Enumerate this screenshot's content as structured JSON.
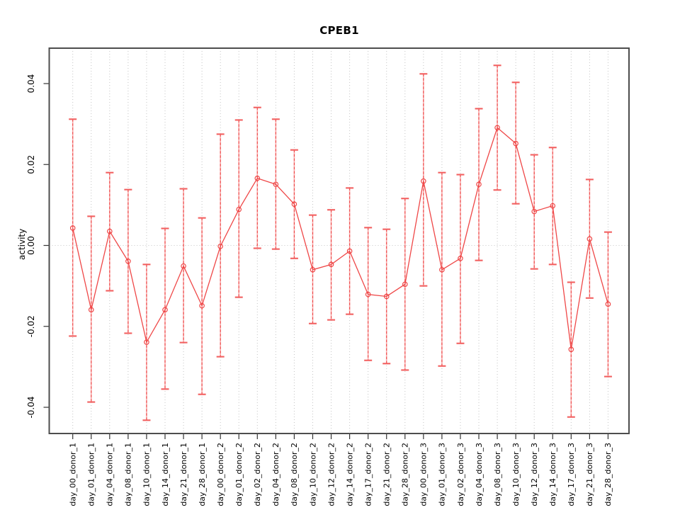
{
  "chart_data": {
    "type": "line",
    "title": "CPEB1",
    "xlabel": "",
    "ylabel": "activity",
    "ylim": [
      -0.047,
      0.048
    ],
    "yticks": [
      "-0.04",
      "-0.02",
      "0.00",
      "0.02",
      "0.04"
    ],
    "zero_line": true,
    "grid": "vertical dotted gridline at every category; dotted horizontal line at y=0",
    "legend_position": "none",
    "marker": "open-circle",
    "error_bars": "vertical dashed whiskers with flat caps",
    "colors": {
      "series": "#ef4747",
      "error_bar_dash": "#ee4848",
      "error_bar_base": "#f9abab",
      "error_cap": "#f26060",
      "grid": "#c4c4c4",
      "frame": "#4d4d4d",
      "tick": "#333333",
      "text": "#000000",
      "background": "#ffffff"
    },
    "categories": [
      "day_00_donor_1",
      "day_01_donor_1",
      "day_04_donor_1",
      "day_08_donor_1",
      "day_10_donor_1",
      "day_14_donor_1",
      "day_21_donor_1",
      "day_28_donor_1",
      "day_00_donor_2",
      "day_01_donor_2",
      "day_02_donor_2",
      "day_04_donor_2",
      "day_08_donor_2",
      "day_10_donor_2",
      "day_12_donor_2",
      "day_14_donor_2",
      "day_17_donor_2",
      "day_21_donor_2",
      "day_28_donor_2",
      "day_00_donor_3",
      "day_01_donor_3",
      "day_02_donor_3",
      "day_04_donor_3",
      "day_08_donor_3",
      "day_10_donor_3",
      "day_12_donor_3",
      "day_14_donor_3",
      "day_17_donor_3",
      "day_21_donor_3",
      "day_28_donor_3"
    ],
    "series": [
      {
        "name": "activity",
        "y": [
          0.0043,
          -0.0159,
          0.0035,
          -0.0039,
          -0.0239,
          -0.0159,
          -0.0051,
          -0.0149,
          -0.0002,
          0.0089,
          0.0166,
          0.0151,
          0.0102,
          -0.006,
          -0.0047,
          -0.0014,
          -0.0121,
          -0.0126,
          -0.0096,
          0.0159,
          -0.006,
          -0.0032,
          0.0151,
          0.0291,
          0.0252,
          0.0084,
          0.0098,
          -0.0257,
          0.0016,
          -0.0145
        ],
        "err_hi": [
          0.0312,
          0.0072,
          0.018,
          0.0138,
          -0.0047,
          0.0042,
          0.014,
          0.0068,
          0.0275,
          0.031,
          0.0341,
          0.0312,
          0.0236,
          0.0075,
          0.0088,
          0.0142,
          0.0044,
          0.004,
          0.0116,
          0.0424,
          0.018,
          0.0175,
          0.0338,
          0.0445,
          0.0403,
          0.0224,
          0.0242,
          -0.0091,
          0.0163,
          0.0033
        ],
        "err_lo": [
          -0.0224,
          -0.0387,
          -0.0112,
          -0.0217,
          -0.0432,
          -0.0355,
          -0.024,
          -0.0368,
          -0.0275,
          -0.0128,
          -0.0007,
          -0.0009,
          -0.0032,
          -0.0193,
          -0.0184,
          -0.017,
          -0.0284,
          -0.0292,
          -0.0308,
          -0.01,
          -0.0298,
          -0.0242,
          -0.0037,
          0.0137,
          0.0103,
          -0.0058,
          -0.0047,
          -0.0424,
          -0.013,
          -0.0324
        ]
      }
    ]
  }
}
